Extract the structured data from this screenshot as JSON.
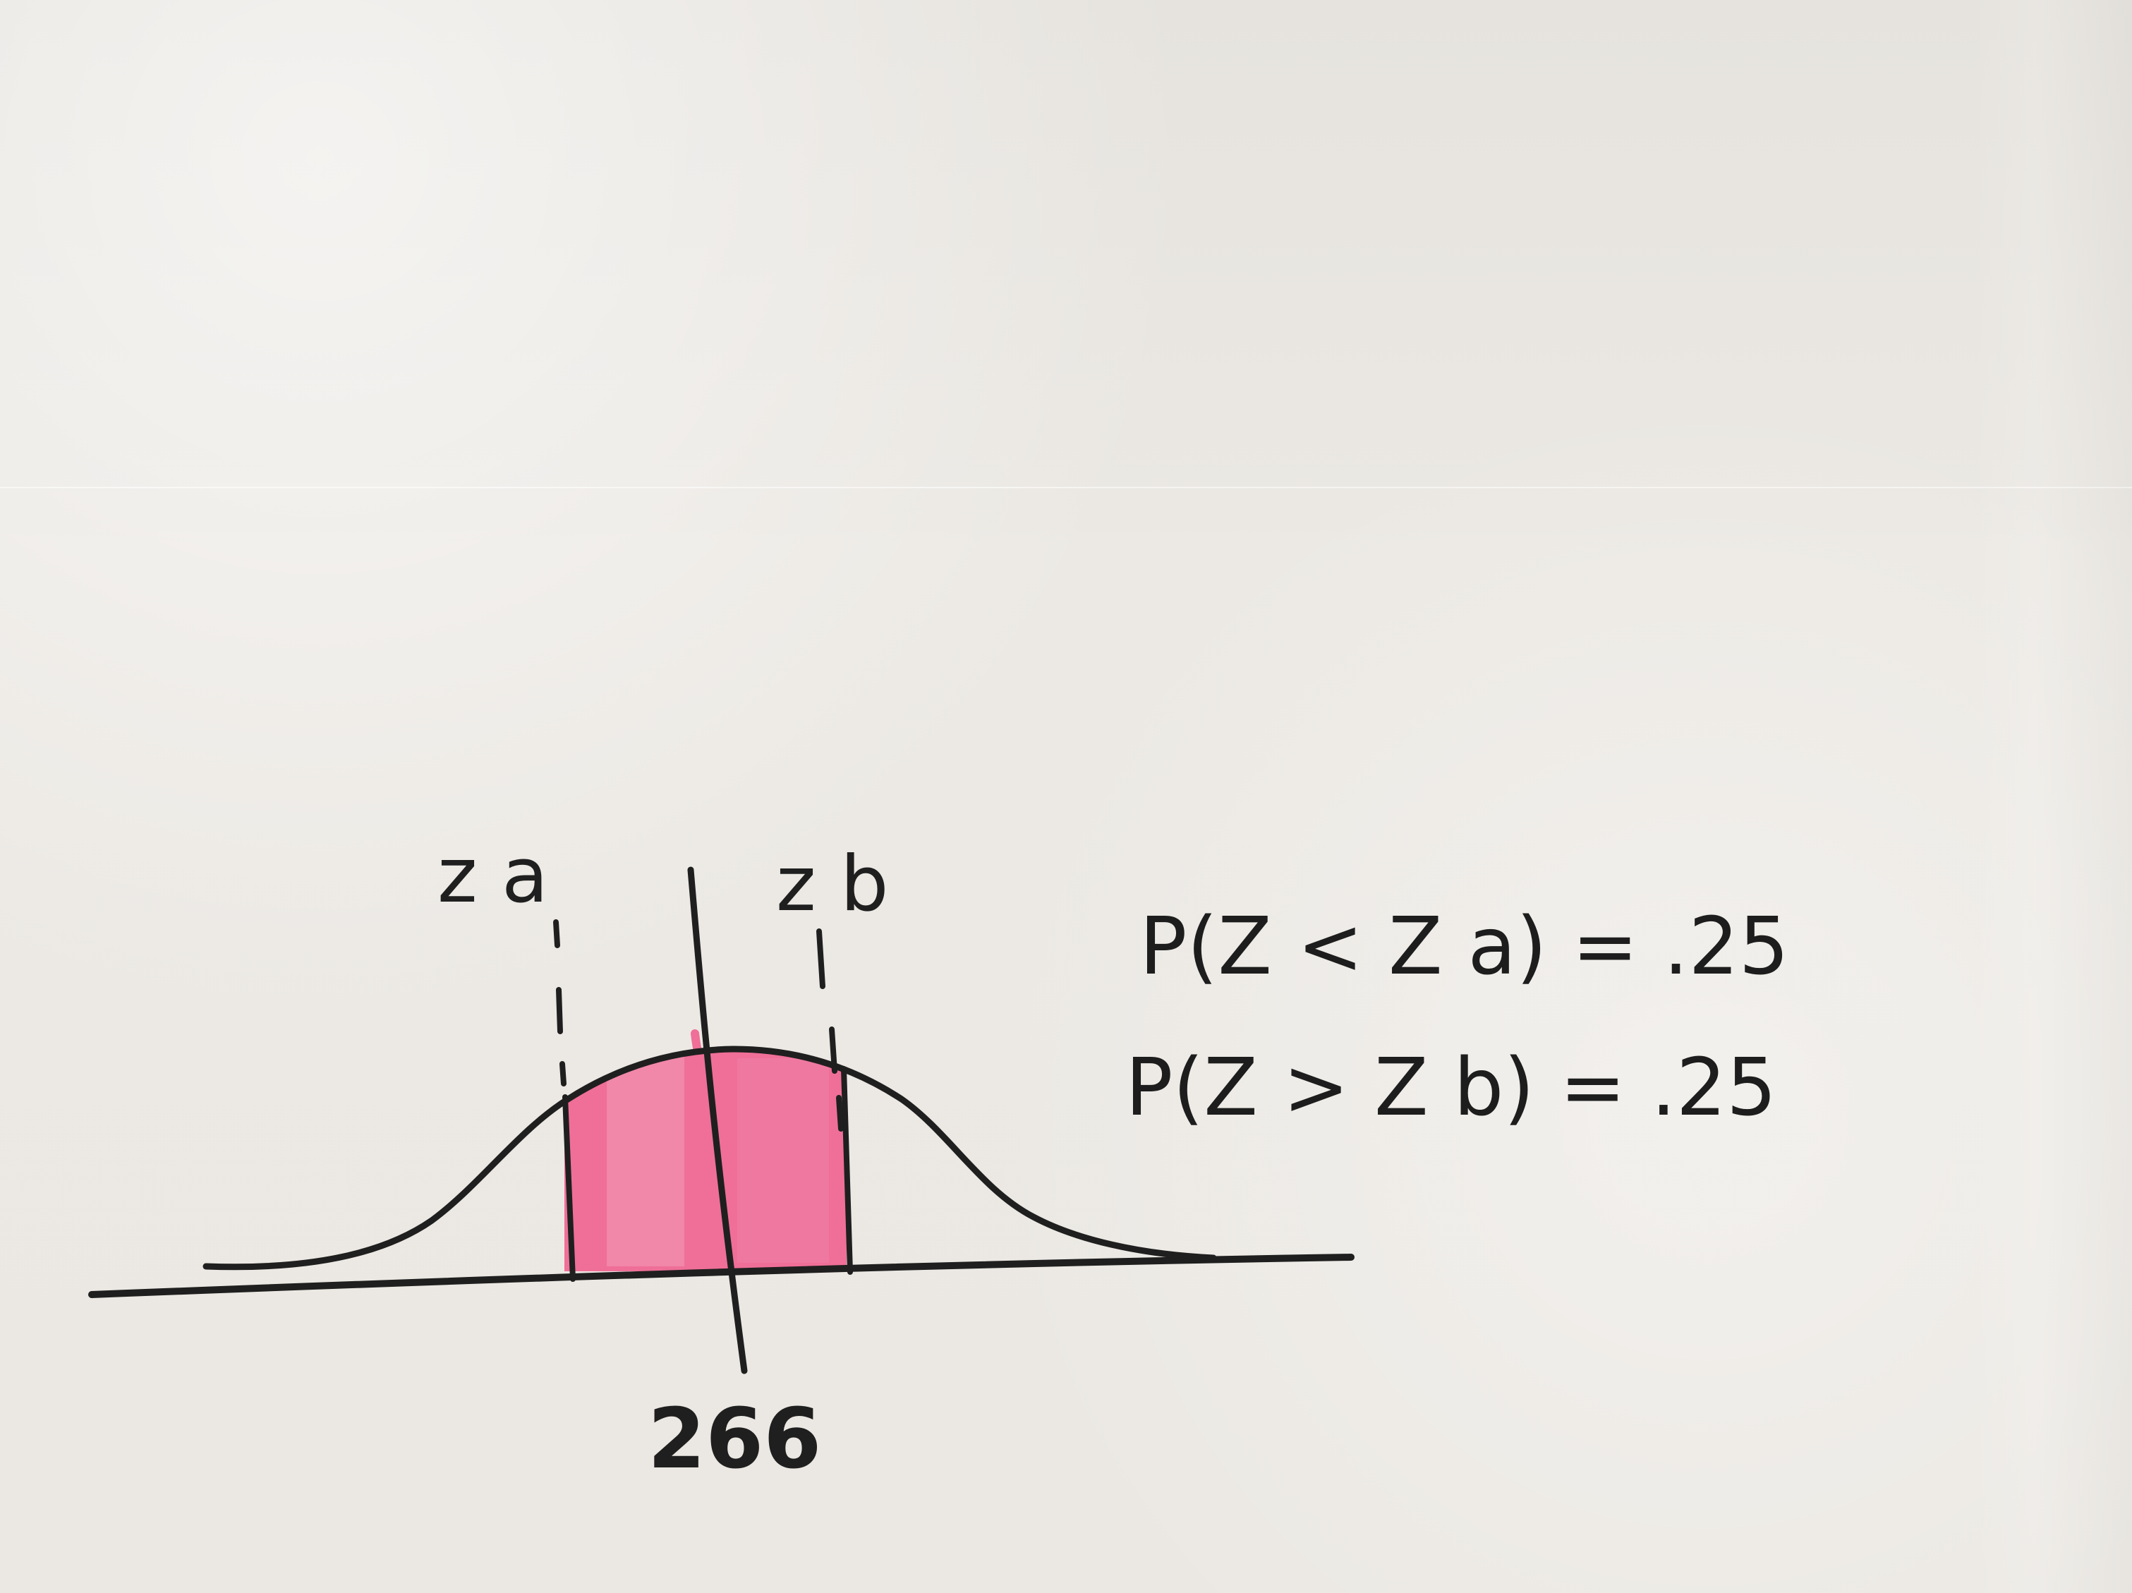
{
  "sketch": {
    "labels": {
      "za": "z a",
      "zb": "z b",
      "center": "266"
    },
    "equations": [
      "P(Z < Z a) = .25",
      "P(Z > Z b) = .25"
    ],
    "colors": {
      "ink": "#1f1f1f",
      "shade": "#ef6f98",
      "shadeLight": "#f29ab8",
      "paper": "#ebe8e3"
    }
  }
}
